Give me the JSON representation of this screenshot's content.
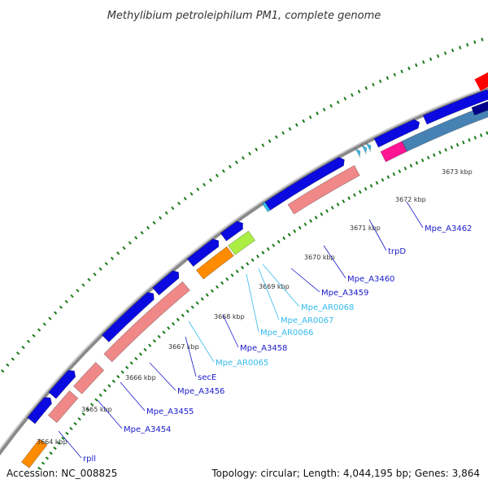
{
  "header": {
    "title": "Methylibium petroleiphilum PM1, complete genome"
  },
  "footer": {
    "accession": "Accession: NC_008825",
    "topology": "Topology: circular; Length: 4,044,195 bp; Genes: 3,864"
  },
  "colors": {
    "cds": "#0a0ae0",
    "cds_dark": "#00008b",
    "rrna_pink": "#f08888",
    "trna_orange": "#ff8c00",
    "lightgreen": "#aaee44",
    "magenta": "#ff1493",
    "steelblue": "#4682b4",
    "skyblue": "#33bbee",
    "red": "#ff0000",
    "backbone": "#8a8a8a",
    "dots": "#1a7a1a",
    "label_blue": "#1a1acc",
    "label_cyan": "#33bbee",
    "label_line": "#1a1acc"
  },
  "ticks": [
    {
      "label": "3664 kbp"
    },
    {
      "label": "3665 kbp"
    },
    {
      "label": "3666 kbp"
    },
    {
      "label": "3667 kbp"
    },
    {
      "label": "3668 kbp"
    },
    {
      "label": "3669 kbp"
    },
    {
      "label": "3670 kbp"
    },
    {
      "label": "3671 kbp"
    },
    {
      "label": "3672 kbp"
    },
    {
      "label": "3673 kbp"
    }
  ],
  "gene_labels": [
    {
      "text": "rpll",
      "color": "label_blue"
    },
    {
      "text": "Mpe_A3454",
      "color": "label_blue"
    },
    {
      "text": "Mpe_A3455",
      "color": "label_blue"
    },
    {
      "text": "Mpe_A3456",
      "color": "label_blue"
    },
    {
      "text": "secE",
      "color": "label_blue"
    },
    {
      "text": "Mpe_AR0065",
      "color": "label_cyan"
    },
    {
      "text": "Mpe_A3458",
      "color": "label_blue"
    },
    {
      "text": "Mpe_AR0066",
      "color": "label_cyan"
    },
    {
      "text": "Mpe_AR0067",
      "color": "label_cyan"
    },
    {
      "text": "Mpe_AR0068",
      "color": "label_cyan"
    },
    {
      "text": "Mpe_A3459",
      "color": "label_blue"
    },
    {
      "text": "Mpe_A3460",
      "color": "label_blue"
    },
    {
      "text": "trpD",
      "color": "label_blue"
    },
    {
      "text": "Mpe_A3462",
      "color": "label_blue"
    }
  ]
}
